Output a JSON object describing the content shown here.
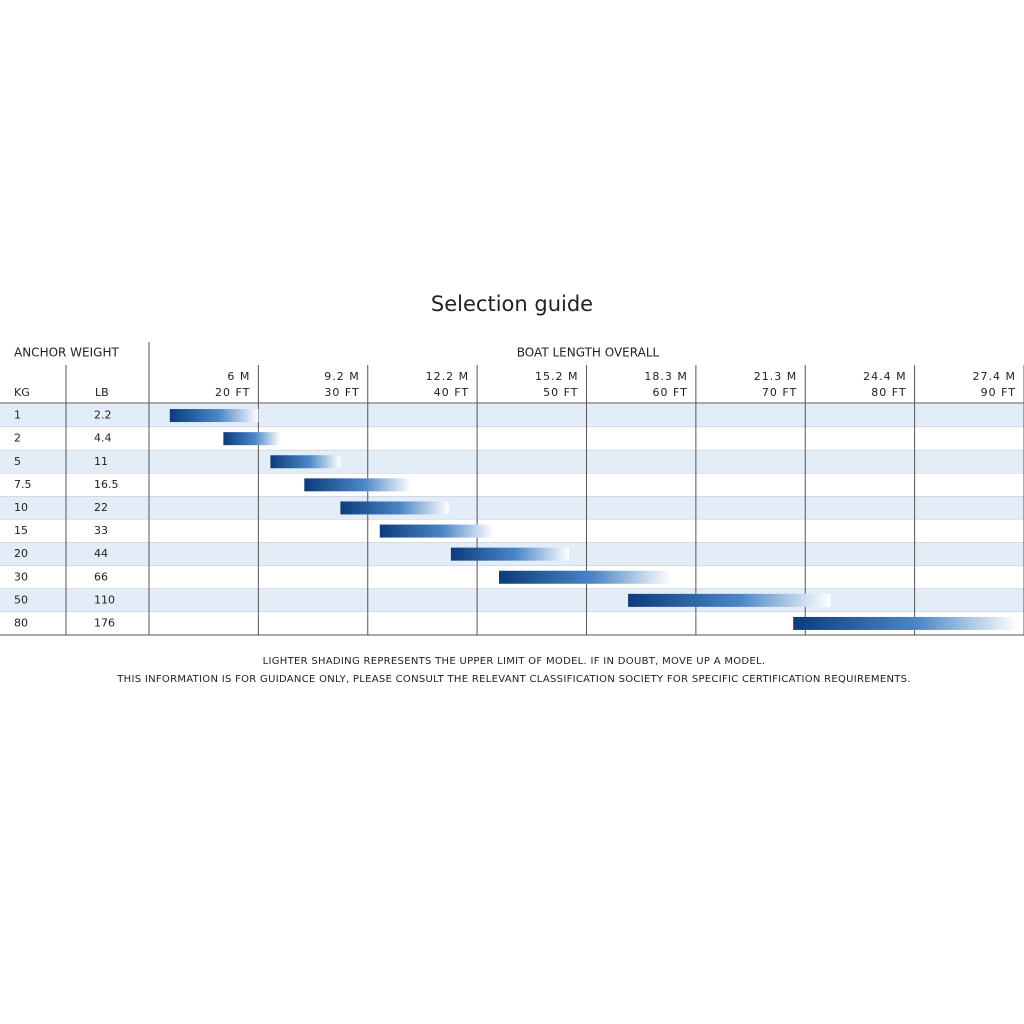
{
  "chart_data": {
    "type": "range",
    "title": "Selection guide",
    "y_group_label": "ANCHOR WEIGHT",
    "x_group_label": "BOAT LENGTH OVERALL",
    "kg_header": "KG",
    "lb_header": "LB",
    "categories": [
      "1",
      "2",
      "5",
      "7.5",
      "10",
      "15",
      "20",
      "30",
      "50",
      "80"
    ],
    "lb_labels": [
      "2.2",
      "4.4",
      "11",
      "16.5",
      "22",
      "33",
      "44",
      "66",
      "110",
      "176"
    ],
    "start": [
      11.9,
      16.8,
      21.1,
      24.2,
      27.5,
      31.1,
      37.6,
      42.0,
      53.8,
      68.9
    ],
    "end": [
      20.0,
      22.0,
      27.5,
      34.0,
      37.4,
      41.5,
      48.4,
      57.7,
      72.3,
      89.4
    ],
    "color": "#0b3c7d",
    "xlim": [
      10,
      90
    ],
    "xticks": [
      {
        "value": 20,
        "label": "20 FT"
      },
      {
        "value": 30,
        "label": "30 FT"
      },
      {
        "value": 40,
        "label": "40 FT"
      },
      {
        "value": 50,
        "label": "50 FT"
      },
      {
        "value": 60,
        "label": "60 FT"
      },
      {
        "value": 70,
        "label": "70 FT"
      },
      {
        "value": 80,
        "label": "80 FT"
      },
      {
        "value": 90,
        "label": "90 FT"
      }
    ],
    "xticks_metric": [
      "6 M",
      "9.2 M",
      "12.2 M",
      "15.2 M",
      "18.3 M",
      "21.3 M",
      "24.4 M",
      "27.4 M"
    ],
    "grid": true,
    "notes": [
      "LIGHTER SHADING REPRESENTS THE UPPER LIMIT OF MODEL. IF IN DOUBT, MOVE UP A MODEL.",
      "THIS INFORMATION IS FOR GUIDANCE ONLY, PLEASE CONSULT THE RELEVANT CLASSIFICATION SOCIETY FOR SPECIFIC CERTIFICATION REQUIREMENTS."
    ]
  }
}
